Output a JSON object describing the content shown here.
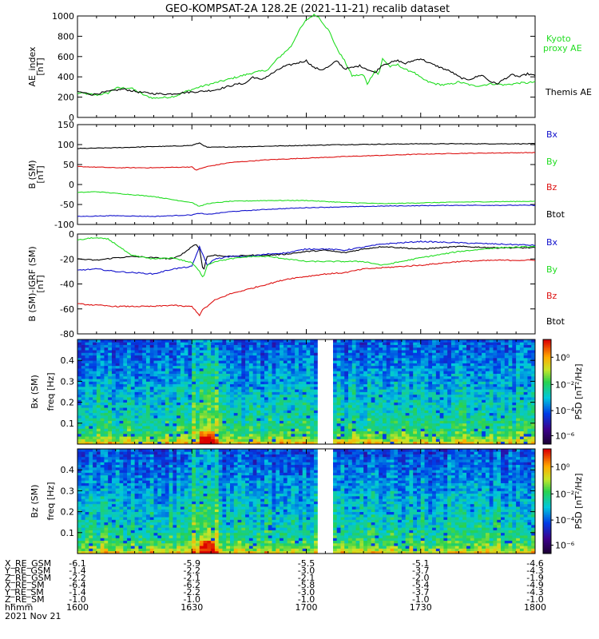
{
  "chart_data": [
    {
      "type": "line",
      "title": "GEO-KOMPSAT-2A 128.2E (2021-11-21) recalib dataset",
      "ylabel": "AE_index [nT]",
      "ylim": [
        0,
        1000
      ],
      "yticks": [
        "0",
        "200",
        "400",
        "600",
        "800",
        "1000"
      ],
      "x_unit": "minutes since 1600",
      "series": [
        {
          "name": "Kyoto proxy AE",
          "color": "#22dd22",
          "x": [
            0,
            2,
            5,
            8,
            10,
            14,
            18,
            20,
            24,
            26,
            28,
            32,
            36,
            40,
            44,
            46,
            50,
            52,
            56,
            58,
            60,
            62,
            63,
            64,
            66,
            68,
            70,
            72,
            75,
            76,
            78,
            79,
            80,
            82,
            84,
            86,
            88,
            90,
            92,
            94,
            96,
            98,
            100,
            102,
            104,
            106,
            108,
            110,
            112,
            114,
            116,
            118,
            120
          ],
          "values": [
            240,
            235,
            220,
            240,
            290,
            290,
            210,
            190,
            200,
            215,
            250,
            300,
            340,
            380,
            420,
            440,
            470,
            560,
            700,
            850,
            960,
            1010,
            1000,
            950,
            850,
            680,
            560,
            410,
            420,
            330,
            460,
            420,
            580,
            500,
            520,
            470,
            450,
            390,
            350,
            330,
            320,
            330,
            350,
            330,
            310,
            315,
            330,
            330,
            320,
            330,
            340,
            340,
            350
          ]
        },
        {
          "name": "Themis AE",
          "color": "#000000",
          "x": [
            0,
            4,
            8,
            12,
            16,
            20,
            24,
            28,
            32,
            36,
            40,
            42,
            44,
            46,
            48,
            50,
            54,
            56,
            60,
            62,
            64,
            66,
            68,
            70,
            72,
            74,
            78,
            80,
            84,
            86,
            88,
            90,
            92,
            94,
            96,
            98,
            100,
            102,
            104,
            106,
            108,
            110,
            112,
            114,
            116,
            118,
            120
          ],
          "values": [
            255,
            225,
            255,
            280,
            250,
            235,
            230,
            245,
            255,
            270,
            310,
            330,
            335,
            400,
            370,
            410,
            500,
            520,
            560,
            490,
            470,
            500,
            560,
            480,
            490,
            510,
            440,
            520,
            560,
            530,
            560,
            580,
            540,
            510,
            480,
            450,
            400,
            370,
            390,
            420,
            360,
            330,
            380,
            420,
            400,
            430,
            410
          ]
        }
      ]
    },
    {
      "type": "line",
      "ylabel": "B (SM) [nT]",
      "ylim": [
        -100,
        150
      ],
      "yticks": [
        "-100",
        "-50",
        "0",
        "50",
        "100",
        "150"
      ],
      "series": [
        {
          "name": "Btot",
          "color": "#000000",
          "x": [
            0,
            10,
            20,
            25,
            30,
            32,
            34,
            40,
            50,
            60,
            70,
            80,
            90,
            100,
            110,
            120
          ],
          "values": [
            90,
            92,
            95,
            96,
            98,
            104,
            93,
            94,
            96,
            98,
            100,
            101,
            102,
            102,
            102,
            102
          ]
        },
        {
          "name": "Bz",
          "color": "#dd1111",
          "x": [
            0,
            10,
            20,
            25,
            30,
            31,
            34,
            40,
            50,
            60,
            70,
            80,
            90,
            100,
            110,
            120
          ],
          "values": [
            45,
            42,
            42,
            43,
            44,
            36,
            45,
            55,
            62,
            66,
            70,
            73,
            76,
            78,
            79,
            80
          ]
        },
        {
          "name": "By",
          "color": "#22dd22",
          "x": [
            0,
            5,
            10,
            20,
            25,
            30,
            32,
            34,
            40,
            50,
            60,
            70,
            80,
            90,
            100,
            110,
            120
          ],
          "values": [
            -20,
            -18,
            -22,
            -30,
            -38,
            -45,
            -55,
            -48,
            -42,
            -40,
            -40,
            -45,
            -48,
            -46,
            -44,
            -43,
            -42
          ]
        },
        {
          "name": "Bx",
          "color": "#1111cc",
          "x": [
            0,
            10,
            20,
            25,
            30,
            32,
            34,
            40,
            50,
            60,
            70,
            80,
            90,
            100,
            110,
            120
          ],
          "values": [
            -80,
            -78,
            -80,
            -78,
            -76,
            -72,
            -75,
            -68,
            -62,
            -58,
            -56,
            -54,
            -53,
            -52,
            -52,
            -52
          ]
        }
      ]
    },
    {
      "type": "line",
      "ylabel": "B (SM)-IGRF (SM) [nT]",
      "ylim": [
        -80,
        0
      ],
      "yticks": [
        "-80",
        "-60",
        "-40",
        "-20",
        "0"
      ],
      "series": [
        {
          "name": "Btot",
          "color": "#000000",
          "x": [
            0,
            5,
            10,
            15,
            20,
            25,
            28,
            30,
            31,
            32,
            33,
            34,
            36,
            40,
            45,
            50,
            55,
            60,
            65,
            70,
            75,
            80,
            90,
            100,
            110,
            120
          ],
          "values": [
            -20,
            -21,
            -19,
            -18,
            -19,
            -20,
            -15,
            -10,
            -8,
            -12,
            -30,
            -18,
            -17,
            -18,
            -17,
            -17,
            -16,
            -14,
            -13,
            -15,
            -12,
            -10,
            -12,
            -10,
            -11,
            -11
          ]
        },
        {
          "name": "Bx",
          "color": "#1111cc",
          "x": [
            0,
            5,
            10,
            15,
            20,
            25,
            30,
            32,
            34,
            36,
            40,
            45,
            50,
            55,
            60,
            65,
            70,
            80,
            90,
            100,
            110,
            120
          ],
          "values": [
            -29,
            -28,
            -30,
            -31,
            -32,
            -28,
            -26,
            -10,
            -25,
            -20,
            -18,
            -18,
            -16,
            -15,
            -12,
            -12,
            -13,
            -8,
            -6,
            -7,
            -8,
            -9
          ]
        },
        {
          "name": "By",
          "color": "#22dd22",
          "x": [
            0,
            4,
            8,
            10,
            14,
            18,
            20,
            25,
            30,
            32,
            33,
            34,
            36,
            40,
            45,
            50,
            55,
            60,
            65,
            70,
            75,
            80,
            90,
            100,
            110,
            120
          ],
          "values": [
            -5,
            -3,
            -4,
            -8,
            -17,
            -19,
            -20,
            -19,
            -23,
            -30,
            -35,
            -25,
            -22,
            -20,
            -18,
            -18,
            -20,
            -22,
            -22,
            -22,
            -22,
            -25,
            -19,
            -14,
            -11,
            -10
          ]
        },
        {
          "name": "Bz",
          "color": "#dd1111",
          "x": [
            0,
            5,
            10,
            15,
            20,
            25,
            28,
            30,
            32,
            33,
            34,
            36,
            40,
            45,
            50,
            55,
            60,
            65,
            70,
            75,
            80,
            90,
            100,
            110,
            120
          ],
          "values": [
            -56,
            -57,
            -58,
            -58,
            -58,
            -57,
            -58,
            -58,
            -65,
            -60,
            -58,
            -53,
            -48,
            -44,
            -40,
            -36,
            -34,
            -32,
            -31,
            -28,
            -27,
            -25,
            -22,
            -21,
            -21
          ]
        }
      ]
    },
    {
      "type": "heatmap",
      "ylabel": "Bx (SM) freq [Hz]",
      "yticks": [
        "0.1",
        "0.2",
        "0.3",
        "0.4"
      ],
      "colorbar": {
        "label": "PSD [nT²/Hz]",
        "ticks": [
          "10⁰",
          "10⁻²",
          "10⁻⁴",
          "10⁻⁶"
        ]
      },
      "data_gap_minutes": [
        63,
        67
      ]
    },
    {
      "type": "heatmap",
      "ylabel": "Bz (SM) freq [Hz]",
      "yticks": [
        "0.1",
        "0.2",
        "0.3",
        "0.4"
      ],
      "colorbar": {
        "label": "PSD [nT²/Hz]",
        "ticks": [
          "10⁰",
          "10⁻²",
          "10⁻⁴",
          "10⁻⁶"
        ]
      },
      "data_gap_minutes": [
        63,
        67
      ]
    }
  ],
  "orbit_table": {
    "row_labels": [
      "X_RE_GSM",
      "Y_RE_GSM",
      "Z_RE_GSM",
      "X_RE_SM",
      "Y_RE_SM",
      "Z_RE_SM",
      "hhmm"
    ],
    "columns": [
      [
        "-6.1",
        "-1.4",
        "-2.2",
        "-6.4",
        "-1.4",
        "-1.0",
        "1600"
      ],
      [
        "-5.9",
        "-2.2",
        "-2.1",
        "-6.2",
        "-2.2",
        "-1.0",
        "1630"
      ],
      [
        "-5.5",
        "-3.0",
        "-2.1",
        "-5.8",
        "-3.0",
        "-1.0",
        "1700"
      ],
      [
        "-5.1",
        "-3.7",
        "-2.0",
        "-5.4",
        "-3.7",
        "-1.0",
        "1730"
      ],
      [
        "-4.6",
        "-4.3",
        "-1.9",
        "-4.9",
        "-4.3",
        "-1.0",
        "1800"
      ]
    ],
    "date": "2021 Nov 21"
  },
  "legend_colors": {
    "black": "#000000",
    "red": "#dd1111",
    "green": "#22dd22",
    "blue": "#1111cc"
  }
}
